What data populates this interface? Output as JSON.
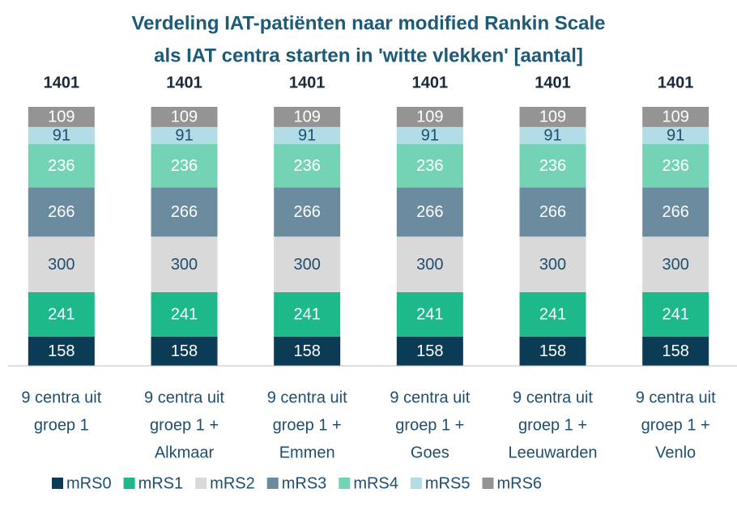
{
  "chart_data": {
    "type": "stacked_bar",
    "title": [
      "Verdeling IAT-patiënten naar modified Rankin Scale",
      "als IAT centra starten in 'witte vlekken' [aantal]"
    ],
    "categories": [
      [
        "9 centra uit",
        "groep 1"
      ],
      [
        "9 centra uit",
        "groep 1 +",
        "Alkmaar"
      ],
      [
        "9 centra uit",
        "groep 1 +",
        "Emmen"
      ],
      [
        "9 centra uit",
        "groep 1 +",
        "Goes"
      ],
      [
        "9 centra uit",
        "groep 1 +",
        "Leeuwarden"
      ],
      [
        "9 centra uit",
        "groep 1 +",
        "Venlo"
      ]
    ],
    "totals": [
      1401,
      1401,
      1401,
      1401,
      1401,
      1401
    ],
    "series": [
      {
        "name": "mRS0",
        "color": "#0c3c55",
        "label_color": "#ffffff",
        "values": [
          158,
          158,
          158,
          158,
          158,
          158
        ]
      },
      {
        "name": "mRS1",
        "color": "#1db98a",
        "label_color": "#ffffff",
        "values": [
          241,
          241,
          241,
          241,
          241,
          241
        ]
      },
      {
        "name": "mRS2",
        "color": "#d9d9d9",
        "label_color": "#1f4e6e",
        "values": [
          300,
          300,
          300,
          300,
          300,
          300
        ]
      },
      {
        "name": "mRS3",
        "color": "#6b8b9f",
        "label_color": "#ffffff",
        "values": [
          266,
          266,
          266,
          266,
          266,
          266
        ]
      },
      {
        "name": "mRS4",
        "color": "#74d3b5",
        "label_color": "#ffffff",
        "values": [
          236,
          236,
          236,
          236,
          236,
          236
        ]
      },
      {
        "name": "mRS5",
        "color": "#b2dde6",
        "label_color": "#1f4e6e",
        "values": [
          91,
          91,
          91,
          91,
          91,
          91
        ]
      },
      {
        "name": "mRS6",
        "color": "#949494",
        "label_color": "#ffffff",
        "values": [
          109,
          109,
          109,
          109,
          109,
          109
        ]
      }
    ]
  }
}
